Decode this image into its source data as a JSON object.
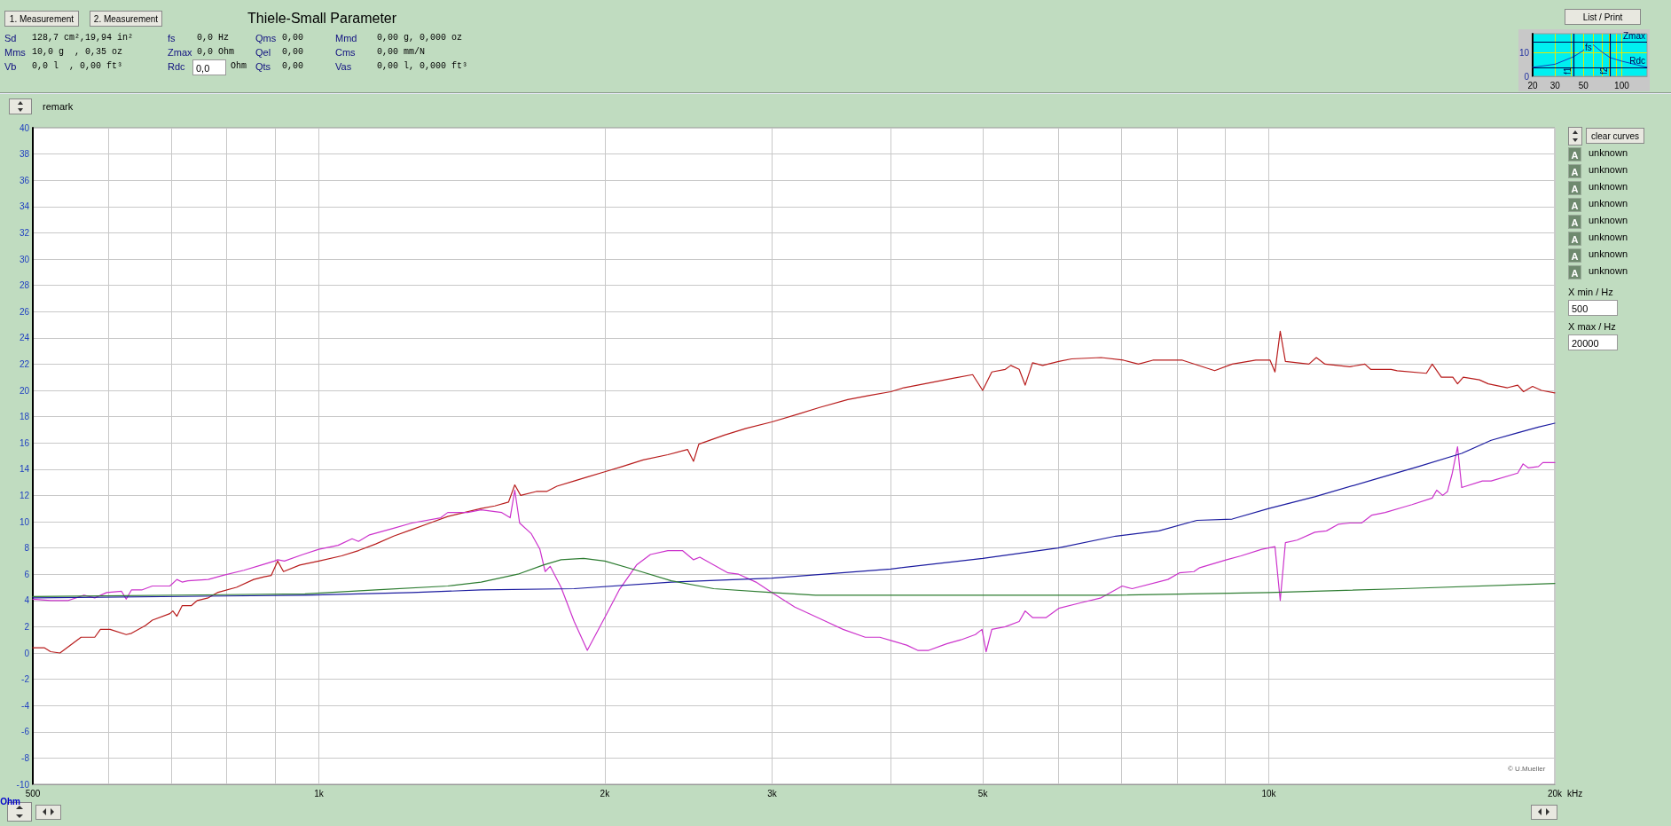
{
  "chart_data": [
    {
      "type": "line",
      "ylabel": "Ohm",
      "xlabel": "kHz",
      "xlim": [
        500,
        20000
      ],
      "ylim": [
        -10,
        40
      ],
      "log": "x",
      "grid": true,
      "marker": "none",
      "line_style": "solid",
      "xticks": [
        {
          "value": 500,
          "label": "500"
        },
        {
          "value": 600,
          "label": null
        },
        {
          "value": 700,
          "label": null
        },
        {
          "value": 800,
          "label": null
        },
        {
          "value": 900,
          "label": null
        },
        {
          "value": 1000,
          "label": "1k"
        },
        {
          "value": 2000,
          "label": "2k"
        },
        {
          "value": 3000,
          "label": "3k"
        },
        {
          "value": 4000,
          "label": null
        },
        {
          "value": 5000,
          "label": "5k"
        },
        {
          "value": 6000,
          "label": null
        },
        {
          "value": 7000,
          "label": null
        },
        {
          "value": 8000,
          "label": null
        },
        {
          "value": 9000,
          "label": null
        },
        {
          "value": 10000,
          "label": "10k"
        },
        {
          "value": 20000,
          "label": "20k"
        }
      ],
      "yticks": [
        -10,
        -8,
        -6,
        -4,
        -2,
        0,
        2,
        4,
        6,
        8,
        10,
        12,
        14,
        16,
        18,
        20,
        22,
        24,
        26,
        28,
        30,
        32,
        34,
        36,
        38,
        40
      ],
      "series": [
        {
          "color": "#b81c1c",
          "x": [
            500,
            514,
            522,
            534,
            562,
            581,
            589,
            603,
            627,
            635,
            657,
            668,
            697,
            702,
            709,
            718,
            734,
            745,
            765,
            782,
            819,
            854,
            876,
            891,
            905,
            918,
            955,
            1000,
            1057,
            1101,
            1148,
            1199,
            1253,
            1309,
            1367,
            1423,
            1482,
            1532,
            1584,
            1608,
            1631,
            1694,
            1737,
            1781,
            1857,
            1917,
            2000,
            2086,
            2195,
            2330,
            2444,
            2480,
            2512,
            2673,
            2816,
            3000,
            3198,
            3366,
            3604,
            3791,
            4000,
            4127,
            4413,
            4637,
            4878,
            4998,
            5110,
            5280,
            5350,
            5460,
            5540,
            5640,
            5780,
            6010,
            6200,
            6660,
            7030,
            7290,
            7550,
            8110,
            8770,
            9150,
            9690,
            10030,
            10150,
            10280,
            10410,
            11020,
            11220,
            11460,
            12170,
            12620,
            12800,
            13450,
            13650,
            14650,
            14860,
            15190,
            15620,
            15800,
            16020,
            16660,
            17020,
            17830,
            18280,
            18540,
            18950,
            19360,
            20000
          ],
          "values": [
            0.4,
            0.4,
            0.1,
            0,
            1.2,
            1.2,
            1.8,
            1.8,
            1.4,
            1.5,
            2.1,
            2.5,
            3.0,
            3.2,
            2.8,
            3.6,
            3.6,
            4.0,
            4.2,
            4.6,
            5.0,
            5.6,
            5.8,
            5.9,
            7.0,
            6.2,
            6.7,
            7.0,
            7.4,
            7.8,
            8.3,
            8.9,
            9.4,
            9.9,
            10.4,
            10.7,
            11.0,
            11.2,
            11.5,
            12.8,
            12.0,
            12.3,
            12.3,
            12.7,
            13.1,
            13.4,
            13.8,
            14.2,
            14.7,
            15.1,
            15.5,
            14.6,
            15.9,
            16.6,
            17.1,
            17.6,
            18.2,
            18.7,
            19.3,
            19.6,
            19.9,
            20.2,
            20.6,
            20.9,
            21.2,
            20.0,
            21.4,
            21.6,
            21.9,
            21.6,
            20.4,
            22.1,
            21.9,
            22.2,
            22.4,
            22.5,
            22.3,
            22.0,
            22.3,
            22.3,
            21.5,
            22.0,
            22.3,
            22.3,
            21.4,
            24.5,
            22.2,
            22.0,
            22.5,
            22.0,
            21.8,
            22.0,
            21.6,
            21.6,
            21.5,
            21.3,
            22.0,
            21.0,
            21.0,
            20.5,
            21.0,
            20.8,
            20.5,
            20.2,
            20.4,
            19.9,
            20.3,
            20.0,
            19.8
          ]
        },
        {
          "color": "#cc33cc",
          "x": [
            500,
            522,
            545,
            566,
            581,
            598,
            620,
            627,
            635,
            651,
            668,
            697,
            709,
            718,
            728,
            765,
            792,
            834,
            870,
            898,
            905,
            920,
            962,
            1000,
            1048,
            1084,
            1101,
            1131,
            1199,
            1253,
            1344,
            1367,
            1434,
            1482,
            1558,
            1590,
            1608,
            1627,
            1673,
            1709,
            1731,
            1752,
            1799,
            1857,
            1917,
            2000,
            2071,
            2160,
            2234,
            2330,
            2414,
            2480,
            2518,
            2696,
            2766,
            2885,
            3000,
            3170,
            3396,
            3563,
            3760,
            3895,
            4022,
            4157,
            4270,
            4385,
            4580,
            4740,
            4910,
            4990,
            5040,
            5110,
            5280,
            5460,
            5540,
            5640,
            5830,
            6010,
            6320,
            6660,
            7010,
            7180,
            7830,
            8050,
            8340,
            8460,
            9030,
            9350,
            9830,
            10150,
            10280,
            10410,
            10710,
            11180,
            11500,
            11830,
            12170,
            12520,
            12840,
            13260,
            13840,
            14150,
            14860,
            15020,
            15240,
            15420,
            15600,
            15800,
            15960,
            16780,
            17140,
            18280,
            18520,
            18750,
            19220,
            19430,
            20000
          ],
          "values": [
            4.1,
            4.0,
            4.0,
            4.4,
            4.2,
            4.6,
            4.7,
            4.1,
            4.8,
            4.8,
            5.1,
            5.1,
            5.6,
            5.4,
            5.5,
            5.6,
            5.9,
            6.3,
            6.7,
            7.0,
            7.1,
            7.0,
            7.5,
            7.9,
            8.2,
            8.7,
            8.5,
            9.0,
            9.5,
            9.9,
            10.3,
            10.7,
            10.7,
            10.9,
            10.7,
            10.3,
            12.4,
            9.9,
            9.1,
            7.9,
            6.2,
            6.6,
            5.0,
            2.4,
            0.2,
            2.7,
            4.8,
            6.7,
            7.5,
            7.8,
            7.8,
            7.1,
            7.3,
            6.1,
            6.0,
            5.4,
            4.6,
            3.5,
            2.5,
            1.8,
            1.2,
            1.2,
            0.9,
            0.6,
            0.2,
            0.2,
            0.7,
            1.0,
            1.4,
            1.8,
            0.1,
            1.8,
            2.0,
            2.4,
            3.2,
            2.7,
            2.7,
            3.4,
            3.8,
            4.2,
            5.1,
            4.9,
            5.6,
            6.1,
            6.2,
            6.5,
            7.1,
            7.4,
            7.9,
            8.1,
            4.0,
            8.4,
            8.6,
            9.2,
            9.3,
            9.8,
            9.9,
            9.9,
            10.5,
            10.7,
            11.1,
            11.3,
            11.8,
            12.4,
            12.0,
            12.3,
            13.7,
            15.7,
            12.6,
            13.1,
            13.1,
            13.7,
            14.4,
            14.1,
            14.2,
            14.5,
            14.5
          ]
        },
        {
          "color": "#1c1ca0",
          "x": [
            500,
            967,
            1253,
            1482,
            1857,
            2350,
            3000,
            4000,
            5000,
            6000,
            6900,
            7660,
            8400,
            9150,
            10000,
            11180,
            12890,
            14370,
            15960,
            17140,
            18130,
            19220,
            20000
          ],
          "values": [
            4.2,
            4.4,
            4.6,
            4.8,
            4.9,
            5.4,
            5.7,
            6.4,
            7.2,
            8.0,
            8.9,
            9.3,
            10.1,
            10.2,
            11.0,
            11.9,
            13.2,
            14.2,
            15.2,
            16.2,
            16.7,
            17.2,
            17.5
          ]
        },
        {
          "color": "#2e7d32",
          "x": [
            500,
            967,
            1148,
            1367,
            1482,
            1620,
            1723,
            1799,
            1900,
            2000,
            2160,
            2350,
            2604,
            3000,
            3334,
            4060,
            5540,
            6900,
            10000,
            13840,
            20000
          ],
          "values": [
            4.3,
            4.5,
            4.8,
            5.1,
            5.4,
            6.0,
            6.7,
            7.1,
            7.2,
            7.0,
            6.3,
            5.5,
            4.9,
            4.6,
            4.4,
            4.4,
            4.4,
            4.4,
            4.6,
            4.9,
            5.3
          ]
        }
      ],
      "annotations": [
        "Thiele-Small Parameter",
        "1. Measurement",
        "2. Measurement",
        "Sd",
        "128,7 cm²,19,94 in²",
        "Mms",
        "10,0 g  , 0,35 oz",
        "Vb",
        "0,0 l  , 0,00 ft³",
        "fs",
        "0,0 Hz",
        "Zmax",
        "0,0 Ohm",
        "Rdc",
        "0,0",
        "Ohm",
        "Qms",
        "0,00",
        "Qel",
        "0,00",
        "Qts",
        "0,00",
        "Mmd",
        "0,00 g, 0,000 oz",
        "Cms",
        "0,00 mm/N",
        "Vas",
        "0,00 l, 0,000 ft³",
        "List / Print",
        "remark",
        "clear curves",
        "unknown",
        "unknown",
        "unknown",
        "unknown",
        "unknown",
        "unknown",
        "unknown",
        "unknown",
        "A",
        "A",
        "A",
        "A",
        "A",
        "A",
        "A",
        "A",
        "X min / Hz",
        "500",
        "X max / Hz",
        "20000",
        "© U.Mueller"
      ]
    },
    {
      "type": "line",
      "xlim": [
        20,
        158
      ],
      "ylim": [
        0,
        18
      ],
      "log": "x",
      "grid": true,
      "marker": "none",
      "xticks": [
        20,
        30,
        {
          "value": 40,
          "label": null
        },
        50,
        {
          "value": 60,
          "label": null
        },
        {
          "value": 70,
          "label": null
        },
        {
          "value": 80,
          "label": null
        },
        {
          "value": 90,
          "label": null
        },
        100
      ],
      "yticks": [
        0,
        10
      ],
      "series": [
        {
          "color": "#1040c0",
          "x": [
            20,
            30,
            42,
            50,
            56,
            70,
            81,
            100,
            158
          ],
          "values": [
            3.8,
            5.1,
            8.3,
            10.9,
            14.5,
            10.3,
            7.9,
            6.4,
            3.8
          ]
        }
      ],
      "ref_lines": [
        {
          "axis": "y",
          "value": 14.5,
          "label": "Zmax",
          "color": "#000050"
        },
        {
          "axis": "y",
          "value": 3.8,
          "label": "Rdc",
          "color": "#000050"
        },
        {
          "axis": "x",
          "value": 42,
          "label": "f1",
          "color": "#000050"
        },
        {
          "axis": "x",
          "value": 81,
          "label": "f2",
          "color": "#000050"
        }
      ],
      "annotations": [
        "fs"
      ]
    }
  ]
}
